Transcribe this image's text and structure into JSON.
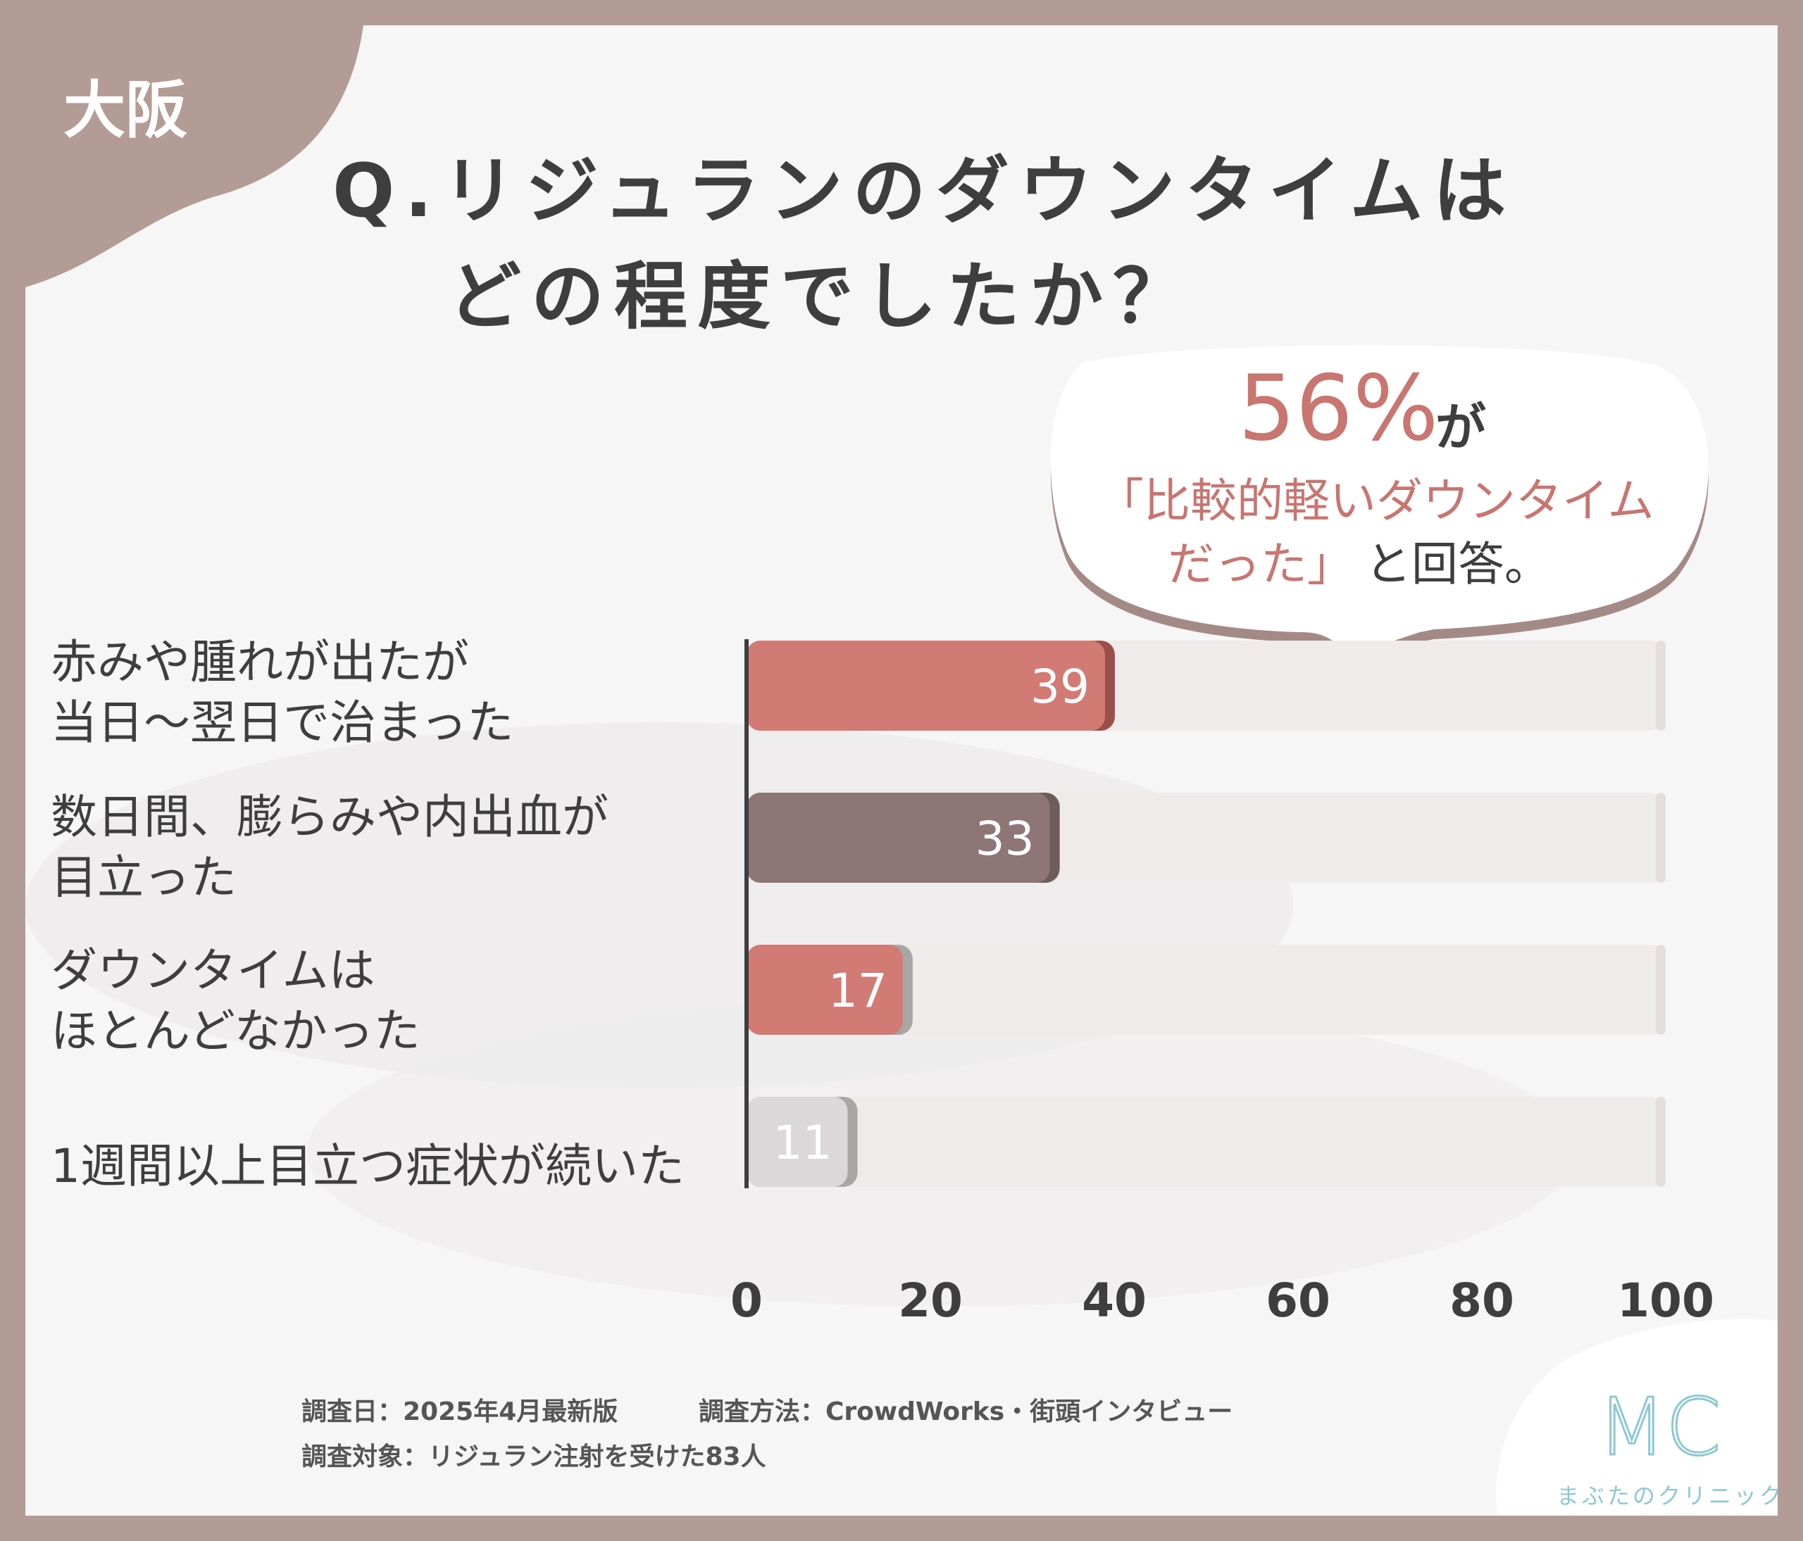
{
  "header": {
    "region": "大阪",
    "title_line1": "Q.リジュランのダウンタイムは",
    "title_line2": "どの程度でしたか？"
  },
  "callout": {
    "percent": "56%",
    "particle": "が",
    "line2": "「比較的軽いダウンタイム",
    "line3_quote": "だった」",
    "line3_rest": "と回答。"
  },
  "chart_data": {
    "type": "bar",
    "orientation": "horizontal",
    "categories": [
      "赤みや腫れが出たが\n当日〜翌日で治まった",
      "数日間、膨らみや内出血が\n目立った",
      "ダウンタイムは\nほとんどなかった",
      "1週間以上目立つ症状が続いた"
    ],
    "values": [
      39,
      33,
      17,
      11
    ],
    "xlim": [
      0,
      100
    ],
    "xticks": [
      0,
      20,
      40,
      60,
      80,
      100
    ],
    "bar_colors": [
      "#d27a74",
      "#8d7675",
      "#d27a74",
      "#dad8d8"
    ],
    "track_color": "#efebea",
    "grid": false
  },
  "footer": {
    "survey_date": "調査日：2025年4月最新版",
    "survey_method": "調査方法：CrowdWorks・街頭インタビュー",
    "survey_target": "調査対象：リジュラン注射を受けた83人"
  },
  "logo": {
    "mark": "MC",
    "name": "まぶたのクリニック",
    "color": "#8ec9d2"
  }
}
